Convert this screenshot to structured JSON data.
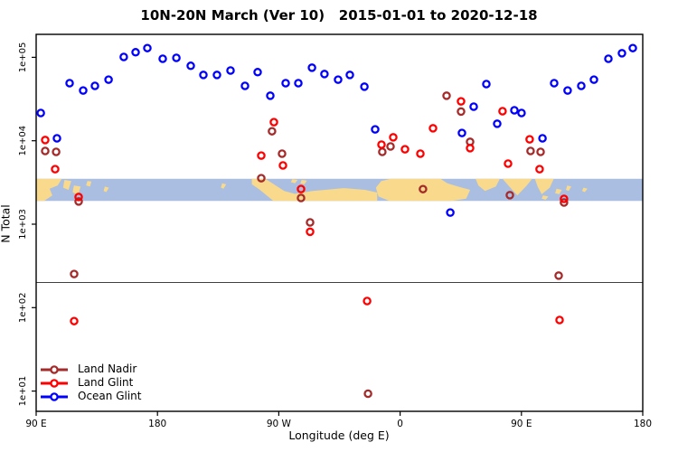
{
  "title": "10N-20N March (Ver 10)   2015-01-01 to 2020-12-18",
  "chart_data": {
    "type": "scatter",
    "title": "10N-20N March (Ver 10)   2015-01-01 to 2020-12-18",
    "xlabel": "Longitude (deg E)",
    "ylabel": "N Total",
    "x_axis": {
      "note": "axis wraps eastward: 90E -> 180 -> 90W -> 0 -> 90E -> 180; positions stored as degrees east of 90E (0..450)",
      "range_deg": [
        0,
        450
      ],
      "ticks_deg": [
        0,
        90,
        180,
        270,
        360,
        450
      ],
      "tick_labels": [
        "90 E",
        "180",
        "90 W",
        "0",
        "90 E",
        "180"
      ]
    },
    "y_axis": {
      "scale": "log10",
      "range": [
        5.8,
        190000
      ],
      "ticks": [
        10,
        100,
        1000,
        10000,
        100000
      ],
      "tick_labels": [
        "1e+01",
        "1e+02",
        "1e+03",
        "1e+04",
        "1e+05"
      ]
    },
    "grid": false,
    "legend_position": "bottom-left",
    "reference_line": {
      "value": 200,
      "color": "#404040"
    },
    "map_band": {
      "description": "world map strip for 10N-20N latitude drawn across plot",
      "value_top": 3500,
      "value_bottom": 1900,
      "ocean_color": "#A9BEE1",
      "land_color": "#F9D98B",
      "land_polygons": [
        [
          [
            0,
            0
          ],
          [
            19,
            0
          ],
          [
            16,
            0.3
          ],
          [
            10,
            0.45
          ],
          [
            12,
            0.75
          ],
          [
            6,
            1
          ],
          [
            0,
            1
          ]
        ],
        [
          [
            21,
            0.05
          ],
          [
            26,
            0.1
          ],
          [
            24,
            0.5
          ],
          [
            20,
            0.4
          ]
        ],
        [
          [
            28,
            0.3
          ],
          [
            33,
            0.35
          ],
          [
            31,
            0.75
          ],
          [
            27,
            0.6
          ]
        ],
        [
          [
            38,
            0.1
          ],
          [
            41,
            0.12
          ],
          [
            40,
            0.35
          ],
          [
            37,
            0.3
          ]
        ],
        [
          [
            51,
            0.35
          ],
          [
            54,
            0.4
          ],
          [
            52,
            0.6
          ],
          [
            50,
            0.55
          ]
        ],
        [
          [
            138,
            0.2
          ],
          [
            141,
            0.25
          ],
          [
            139,
            0.45
          ],
          [
            137,
            0.4
          ]
        ],
        [
          [
            190,
            0.02
          ],
          [
            194,
            0.05
          ],
          [
            192,
            0.2
          ],
          [
            189,
            0.15
          ]
        ],
        [
          [
            197,
            0.05
          ],
          [
            201,
            0.08
          ],
          [
            199,
            0.25
          ],
          [
            196,
            0.2
          ]
        ],
        [
          [
            160,
            0
          ],
          [
            170,
            0
          ],
          [
            184,
            0.55
          ],
          [
            196,
            0.75
          ],
          [
            196,
            1
          ],
          [
            176,
            1
          ],
          [
            166,
            0.5
          ],
          [
            160,
            0.25
          ]
        ],
        [
          [
            186,
            1
          ],
          [
            190,
            0.7
          ],
          [
            205,
            0.55
          ],
          [
            228,
            0.42
          ],
          [
            244,
            0.5
          ],
          [
            253,
            0.62
          ],
          [
            253,
            1
          ]
        ],
        [
          [
            252,
            0.4
          ],
          [
            256,
            0.1
          ],
          [
            263,
            0
          ],
          [
            300,
            0
          ],
          [
            305,
            0.2
          ],
          [
            313,
            0.35
          ],
          [
            322,
            0.5
          ],
          [
            319,
            0.9
          ],
          [
            308,
            1
          ],
          [
            262,
            1
          ],
          [
            254,
            0.8
          ]
        ],
        [
          [
            326,
            0
          ],
          [
            344,
            0
          ],
          [
            341,
            0.35
          ],
          [
            333,
            0.55
          ],
          [
            328,
            0.3
          ]
        ],
        [
          [
            346,
            0
          ],
          [
            368,
            0
          ],
          [
            364,
            0.3
          ],
          [
            357,
            0.75
          ],
          [
            351,
            0.35
          ]
        ],
        [
          [
            370,
            0
          ],
          [
            384,
            0
          ],
          [
            381,
            0.4
          ],
          [
            375,
            0.7
          ],
          [
            372,
            0.35
          ]
        ],
        [
          [
            376,
            0.75
          ],
          [
            380,
            0.8
          ],
          [
            378,
            0.95
          ],
          [
            375,
            0.9
          ]
        ],
        [
          [
            386,
            0.45
          ],
          [
            390,
            0.5
          ],
          [
            388,
            0.7
          ],
          [
            385,
            0.65
          ]
        ],
        [
          [
            394,
            0.3
          ],
          [
            397,
            0.35
          ],
          [
            395,
            0.55
          ],
          [
            393,
            0.5
          ]
        ],
        [
          [
            406,
            0.4
          ],
          [
            409,
            0.45
          ],
          [
            407,
            0.6
          ],
          [
            405,
            0.55
          ]
        ]
      ]
    },
    "series": [
      {
        "name": "Land Nadir",
        "color": "#A52A2A",
        "points": [
          [
            6.7,
            7540
          ],
          [
            14.8,
            7350
          ],
          [
            31.5,
            1870
          ],
          [
            28.2,
            253
          ],
          [
            167,
            3560
          ],
          [
            175,
            13000
          ],
          [
            182.4,
            7000
          ],
          [
            196.5,
            2060
          ],
          [
            203.2,
            1050
          ],
          [
            246.2,
            9.3
          ],
          [
            256.8,
            7350
          ],
          [
            262.9,
            8550
          ],
          [
            287,
            2630
          ],
          [
            304.5,
            34600
          ],
          [
            315.2,
            22400
          ],
          [
            321.9,
            9700
          ],
          [
            351.4,
            2230
          ],
          [
            366.8,
            7540
          ],
          [
            374.2,
            7350
          ],
          [
            387.6,
            242
          ],
          [
            391.6,
            1820
          ]
        ]
      },
      {
        "name": "Land Glint",
        "color": "#FF0000",
        "points": [
          [
            6.7,
            10200
          ],
          [
            14.1,
            4570
          ],
          [
            31.5,
            2120
          ],
          [
            28.2,
            69
          ],
          [
            167,
            6640
          ],
          [
            176.4,
            16700
          ],
          [
            183.1,
            5060
          ],
          [
            196.5,
            2640
          ],
          [
            203.2,
            810
          ],
          [
            245.5,
            120
          ],
          [
            256.2,
            8980
          ],
          [
            264.9,
            11000
          ],
          [
            273.6,
            7900
          ],
          [
            285,
            7000
          ],
          [
            294.4,
            14100
          ],
          [
            315.2,
            29700
          ],
          [
            321.9,
            8140
          ],
          [
            346,
            22600
          ],
          [
            350.1,
            5320
          ],
          [
            366.1,
            10400
          ],
          [
            373.5,
            4570
          ],
          [
            391.6,
            2010
          ],
          [
            388.3,
            71
          ]
        ]
      },
      {
        "name": "Ocean Glint",
        "color": "#0000FF",
        "points": [
          [
            3.4,
            21500
          ],
          [
            15.4,
            10700
          ],
          [
            24.8,
            49000
          ],
          [
            34.9,
            40000
          ],
          [
            43.6,
            45500
          ],
          [
            53.7,
            54000
          ],
          [
            65,
            101000
          ],
          [
            73.8,
            115000
          ],
          [
            82.5,
            129000
          ],
          [
            93.9,
            96000
          ],
          [
            104,
            98500
          ],
          [
            114.7,
            79000
          ],
          [
            124.1,
            61500
          ],
          [
            134.1,
            61500
          ],
          [
            144.2,
            69500
          ],
          [
            154.9,
            45500
          ],
          [
            164.3,
            66500
          ],
          [
            173.7,
            34600
          ],
          [
            185.1,
            49000
          ],
          [
            194.5,
            49000
          ],
          [
            204.6,
            75000
          ],
          [
            213.9,
            63000
          ],
          [
            224,
            54000
          ],
          [
            232.7,
            61500
          ],
          [
            243.5,
            44500
          ],
          [
            251.5,
            13700
          ],
          [
            307.2,
            1380
          ],
          [
            315.9,
            12400
          ],
          [
            324.6,
            25600
          ],
          [
            334,
            47800
          ],
          [
            342,
            16000
          ],
          [
            354.8,
            23200
          ],
          [
            360.1,
            21500
          ],
          [
            375.6,
            10700
          ],
          [
            384.3,
            49000
          ],
          [
            394.3,
            40000
          ],
          [
            404.4,
            45500
          ],
          [
            413.8,
            54000
          ],
          [
            424.5,
            96000
          ],
          [
            434.6,
            112000
          ],
          [
            442.6,
            129000
          ]
        ]
      }
    ]
  }
}
